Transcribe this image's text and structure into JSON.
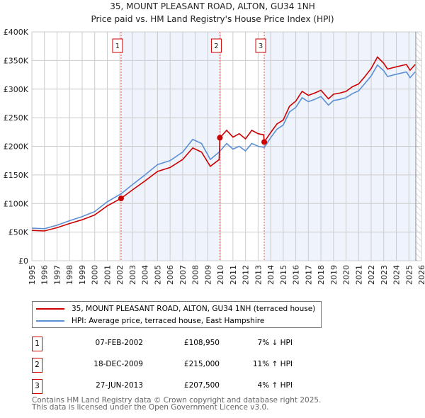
{
  "chart_data": {
    "type": "line",
    "title": "35, MOUNT PLEASANT ROAD, ALTON, GU34 1NH",
    "subtitle": "Price paid vs. HM Land Registry's House Price Index (HPI)",
    "xlim": [
      1995,
      2026
    ],
    "ylim": [
      0,
      400000
    ],
    "y_ticks": [
      {
        "v": 0,
        "label": "£0"
      },
      {
        "v": 50000,
        "label": "£50K"
      },
      {
        "v": 100000,
        "label": "£100K"
      },
      {
        "v": 150000,
        "label": "£150K"
      },
      {
        "v": 200000,
        "label": "£200K"
      },
      {
        "v": 250000,
        "label": "£250K"
      },
      {
        "v": 300000,
        "label": "£300K"
      },
      {
        "v": 350000,
        "label": "£350K"
      },
      {
        "v": 400000,
        "label": "£400K"
      }
    ],
    "x_ticks": [
      "1995",
      "1996",
      "1997",
      "1998",
      "1999",
      "2000",
      "2001",
      "2002",
      "2003",
      "2004",
      "2005",
      "2006",
      "2007",
      "2008",
      "2009",
      "2010",
      "2011",
      "2012",
      "2013",
      "2014",
      "2015",
      "2016",
      "2017",
      "2018",
      "2019",
      "2020",
      "2021",
      "2022",
      "2023",
      "2024",
      "2025",
      "2026"
    ],
    "grid": true,
    "series": [
      {
        "name": "35, MOUNT PLEASANT ROAD, ALTON, GU34 1NH (terraced house)",
        "color": "#cc0000",
        "x": [
          1995,
          1996,
          1997,
          1998,
          1999,
          2000,
          2001,
          2002.1,
          2003,
          2004,
          2005,
          2006,
          2007,
          2007.8,
          2008.5,
          2009.2,
          2009.9,
          2009.96,
          2010.5,
          2011,
          2011.5,
          2012,
          2012.5,
          2013,
          2013.45,
          2013.49,
          2014,
          2014.5,
          2015,
          2015.5,
          2016,
          2016.5,
          2017,
          2017.5,
          2018,
          2018.6,
          2019,
          2019.5,
          2020,
          2020.5,
          2021,
          2021.5,
          2022,
          2022.5,
          2023,
          2023.3,
          2024,
          2024.8,
          2025.1,
          2025.5
        ],
        "y": [
          53000,
          52000,
          57700,
          65000,
          71600,
          80000,
          95800,
          108950,
          123700,
          139500,
          156000,
          163000,
          177000,
          197000,
          190000,
          165000,
          176700,
          215000,
          228000,
          216000,
          222000,
          213000,
          228000,
          222000,
          220000,
          207500,
          224000,
          239000,
          246000,
          270000,
          279000,
          296000,
          289000,
          293000,
          298000,
          283000,
          291000,
          293000,
          296000,
          304000,
          309000,
          322000,
          336000,
          356000,
          345000,
          335000,
          339000,
          343000,
          333000,
          343000
        ]
      },
      {
        "name": "HPI: Average price, terraced house, East Hampshire",
        "color": "#5b8fd6",
        "x": [
          1995,
          1996,
          1997,
          1998,
          1999,
          2000,
          2001,
          2002.1,
          2003,
          2004,
          2005,
          2006,
          2007,
          2007.8,
          2008.5,
          2009.2,
          2009.9,
          2010.5,
          2011,
          2011.5,
          2012,
          2012.5,
          2013,
          2013.5,
          2014,
          2014.5,
          2015,
          2015.5,
          2016,
          2016.5,
          2017,
          2017.5,
          2018,
          2018.6,
          2019,
          2019.5,
          2020,
          2020.5,
          2021,
          2021.5,
          2022,
          2022.5,
          2023,
          2023.3,
          2024,
          2024.8,
          2025.1,
          2025.5
        ],
        "y": [
          57000,
          56000,
          62000,
          70000,
          77000,
          86000,
          103000,
          117000,
          133000,
          150000,
          168000,
          175000,
          190000,
          212000,
          205000,
          177000,
          190000,
          205000,
          195000,
          200000,
          192000,
          205000,
          200000,
          198000,
          215000,
          230000,
          237000,
          260000,
          268000,
          285000,
          278000,
          282000,
          287000,
          272000,
          280000,
          282000,
          285000,
          292000,
          297000,
          310000,
          323000,
          342000,
          332000,
          322000,
          326000,
          330000,
          320000,
          330000
        ]
      }
    ],
    "sales": [
      {
        "id": "1",
        "x": 2002.1,
        "y": 108950,
        "date": "07-FEB-2002",
        "price": "£108,950",
        "hpi": "7% ↓ HPI"
      },
      {
        "id": "2",
        "x": 2009.96,
        "y": 215000,
        "date": "18-DEC-2009",
        "price": "£215,000",
        "hpi": "11% ↑ HPI"
      },
      {
        "id": "3",
        "x": 2013.49,
        "y": 207500,
        "date": "27-JUN-2013",
        "price": "£207,500",
        "hpi": "4% ↑ HPI"
      }
    ],
    "forecast_start": 2025.55,
    "legend_placement": "bottom"
  },
  "legend": {
    "items": [
      "35, MOUNT PLEASANT ROAD, ALTON, GU34 1NH (terraced house)",
      "HPI: Average price, terraced house, East Hampshire"
    ]
  },
  "footer": {
    "line1": "Contains HM Land Registry data © Crown copyright and database right 2025.",
    "line2": "This data is licensed under the Open Government Licence v3.0."
  }
}
